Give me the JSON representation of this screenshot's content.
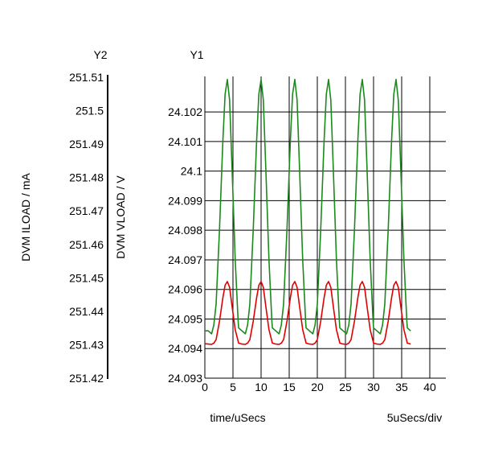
{
  "chart_data": {
    "type": "line",
    "title": "",
    "xlabel": "time/uSecs",
    "x_scale_note": "5uSecs/div",
    "x_ticks": [
      0,
      5,
      10,
      15,
      20,
      25,
      30,
      35,
      40
    ],
    "xlim": [
      0,
      42
    ],
    "y1": {
      "axis_name": "Y1",
      "label": "DVM VLOAD / V",
      "ylim": [
        24.093,
        24.1032
      ],
      "ticks": [
        24.093,
        24.094,
        24.095,
        24.096,
        24.097,
        24.098,
        24.099,
        24.1,
        24.101,
        24.102
      ],
      "tick_labels": [
        "24.093",
        "24.094",
        "24.095",
        "24.096",
        "24.097",
        "24.098",
        "24.099",
        "24.1",
        "24.101",
        "24.102"
      ]
    },
    "y2": {
      "axis_name": "Y2",
      "label": "DVM ILOAD / mA",
      "ylim": [
        251.42,
        251.51
      ],
      "ticks": [
        251.42,
        251.43,
        251.44,
        251.45,
        251.46,
        251.47,
        251.48,
        251.49,
        251.5,
        251.51
      ],
      "tick_labels": [
        "251.42",
        "251.43",
        "251.44",
        "251.45",
        "251.46",
        "251.47",
        "251.48",
        "251.49",
        "251.5",
        "251.51"
      ]
    },
    "grid": true,
    "series": [
      {
        "axis": "y1",
        "color": "#1a8a1a",
        "x": [
          0,
          0.6,
          1.2,
          1.6,
          2.0,
          2.6,
          3.2,
          3.6,
          4.0,
          4.4,
          4.8,
          5.4,
          5.9,
          6.0,
          6.6,
          7.2,
          7.6,
          8.0,
          8.6,
          9.2,
          9.6,
          10.0,
          10.4,
          10.8,
          11.4,
          11.9,
          12.0,
          12.6,
          13.2,
          13.6,
          14.0,
          14.6,
          15.2,
          15.6,
          16.0,
          16.4,
          16.8,
          17.4,
          17.9,
          18.0,
          18.6,
          19.2,
          19.6,
          20.0,
          20.6,
          21.2,
          21.6,
          22.0,
          22.4,
          22.8,
          23.4,
          23.9,
          24.0,
          24.6,
          25.2,
          25.6,
          26.0,
          26.6,
          27.2,
          27.6,
          28.0,
          28.4,
          28.8,
          29.4,
          29.9,
          30.0,
          30.6,
          31.2,
          31.6,
          32.0,
          32.6,
          33.2,
          33.6,
          34.0,
          34.4,
          34.8,
          35.4,
          35.9,
          36.0,
          36.6
        ],
        "y": [
          24.0946,
          24.0946,
          24.0945,
          24.0948,
          24.0955,
          24.098,
          24.101,
          24.1026,
          24.1031,
          24.1024,
          24.1003,
          24.097,
          24.095,
          24.0947,
          24.0946,
          24.0945,
          24.0948,
          24.0955,
          24.098,
          24.101,
          24.1026,
          24.1031,
          24.1024,
          24.1003,
          24.097,
          24.095,
          24.0947,
          24.0946,
          24.0945,
          24.0948,
          24.0955,
          24.098,
          24.101,
          24.1026,
          24.1031,
          24.1024,
          24.1003,
          24.097,
          24.095,
          24.0947,
          24.0946,
          24.0945,
          24.0948,
          24.0955,
          24.098,
          24.101,
          24.1026,
          24.1031,
          24.1024,
          24.1003,
          24.097,
          24.095,
          24.0947,
          24.0946,
          24.0945,
          24.0948,
          24.0955,
          24.098,
          24.101,
          24.1026,
          24.1031,
          24.1024,
          24.1003,
          24.097,
          24.095,
          24.0947,
          24.0946,
          24.0945,
          24.0948,
          24.0955,
          24.098,
          24.101,
          24.1026,
          24.1031,
          24.1024,
          24.1003,
          24.097,
          24.095,
          24.0947,
          24.0946
        ]
      },
      {
        "axis": "y2",
        "color": "#e00000",
        "x": [
          0,
          0.6,
          1.2,
          1.6,
          2.0,
          2.6,
          3.2,
          3.6,
          4.0,
          4.4,
          4.8,
          5.4,
          5.9,
          6.0,
          6.6,
          7.2,
          7.6,
          8.0,
          8.6,
          9.2,
          9.6,
          10.0,
          10.4,
          10.8,
          11.4,
          11.9,
          12.0,
          12.6,
          13.2,
          13.6,
          14.0,
          14.6,
          15.2,
          15.6,
          16.0,
          16.4,
          16.8,
          17.4,
          17.9,
          18.0,
          18.6,
          19.2,
          19.6,
          20.0,
          20.6,
          21.2,
          21.6,
          22.0,
          22.4,
          22.8,
          23.4,
          23.9,
          24.0,
          24.6,
          25.2,
          25.6,
          26.0,
          26.6,
          27.2,
          27.6,
          28.0,
          28.4,
          28.8,
          29.4,
          29.9,
          30.0,
          30.6,
          31.2,
          31.6,
          32.0,
          32.6,
          33.2,
          33.6,
          34.0,
          34.4,
          34.8,
          35.4,
          35.9,
          36.0,
          36.6
        ],
        "y": [
          251.4303,
          251.4302,
          251.4301,
          251.4305,
          251.4315,
          251.437,
          251.444,
          251.4478,
          251.4489,
          251.4472,
          251.442,
          251.4345,
          251.4312,
          251.4305,
          251.4302,
          251.4301,
          251.4305,
          251.4315,
          251.437,
          251.444,
          251.4478,
          251.4489,
          251.4472,
          251.442,
          251.4345,
          251.4312,
          251.4305,
          251.4302,
          251.4301,
          251.4305,
          251.4315,
          251.437,
          251.444,
          251.4478,
          251.4489,
          251.4472,
          251.442,
          251.4345,
          251.4312,
          251.4305,
          251.4302,
          251.4301,
          251.4305,
          251.4315,
          251.437,
          251.444,
          251.4478,
          251.4489,
          251.4472,
          251.442,
          251.4345,
          251.4312,
          251.4305,
          251.4302,
          251.4301,
          251.4305,
          251.4315,
          251.437,
          251.444,
          251.4478,
          251.4489,
          251.4472,
          251.442,
          251.4345,
          251.4312,
          251.4305,
          251.4302,
          251.4301,
          251.4305,
          251.4315,
          251.437,
          251.444,
          251.4478,
          251.4489,
          251.4472,
          251.442,
          251.4345,
          251.4312,
          251.4305,
          251.4302
        ]
      }
    ]
  }
}
